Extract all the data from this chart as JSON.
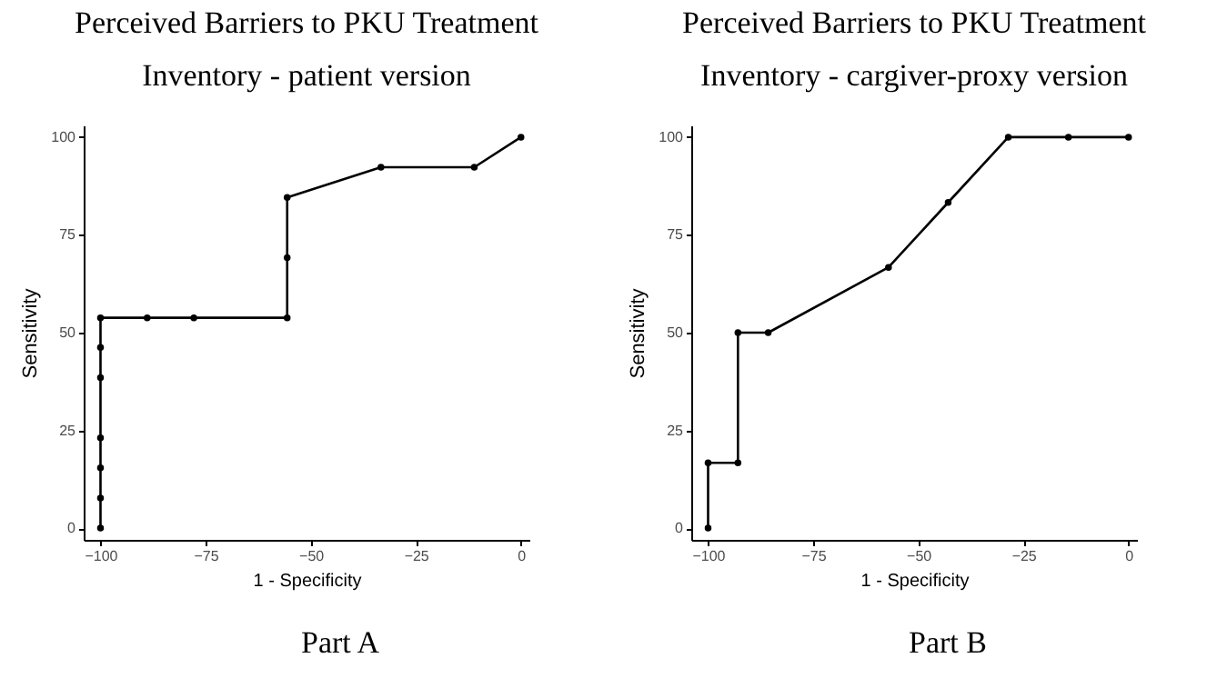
{
  "chart_data": [
    {
      "type": "line",
      "title": "Perceived Barriers to PKU Treatment",
      "subtitle": "Inventory - patient version",
      "xlabel": "1 - Specificity",
      "ylabel": "Sensitivity",
      "marker": "circle",
      "grid": false,
      "x": [
        -100,
        -100,
        -100,
        -100,
        -100,
        -100,
        -100,
        -88.9,
        -77.8,
        -55.6,
        -55.6,
        -55.6,
        -33.3,
        -11.1,
        0
      ],
      "series": [
        {
          "color": "#000000",
          "values": [
            0,
            7.7,
            15.4,
            23.1,
            38.5,
            46.2,
            53.8,
            53.8,
            53.8,
            53.8,
            69.2,
            84.6,
            92.3,
            92.3,
            100
          ]
        }
      ],
      "xlim": [
        -104,
        2
      ],
      "ylim": [
        -3,
        103
      ],
      "xticks": [
        -100,
        -75,
        -50,
        -25,
        0
      ],
      "yticks": [
        0,
        25,
        50,
        75,
        100
      ],
      "annotations": [
        "Part A"
      ]
    },
    {
      "type": "line",
      "title": "Perceived Barriers to PKU Treatment",
      "subtitle": "Inventory - cargiver-proxy version",
      "xlabel": "1 - Specificity",
      "ylabel": "Sensitivity",
      "marker": "circle",
      "grid": false,
      "x": [
        -100,
        -100,
        -92.9,
        -92.9,
        -85.7,
        -57.1,
        -42.9,
        -28.6,
        -14.3,
        0
      ],
      "series": [
        {
          "color": "#000000",
          "values": [
            0,
            16.7,
            16.7,
            50,
            50,
            66.7,
            83.3,
            100,
            100,
            100
          ]
        }
      ],
      "xlim": [
        -104,
        2
      ],
      "ylim": [
        -3,
        103
      ],
      "xticks": [
        -100,
        -75,
        -50,
        -25,
        0
      ],
      "yticks": [
        0,
        25,
        50,
        75,
        100
      ],
      "annotations": [
        "Part B"
      ]
    }
  ]
}
